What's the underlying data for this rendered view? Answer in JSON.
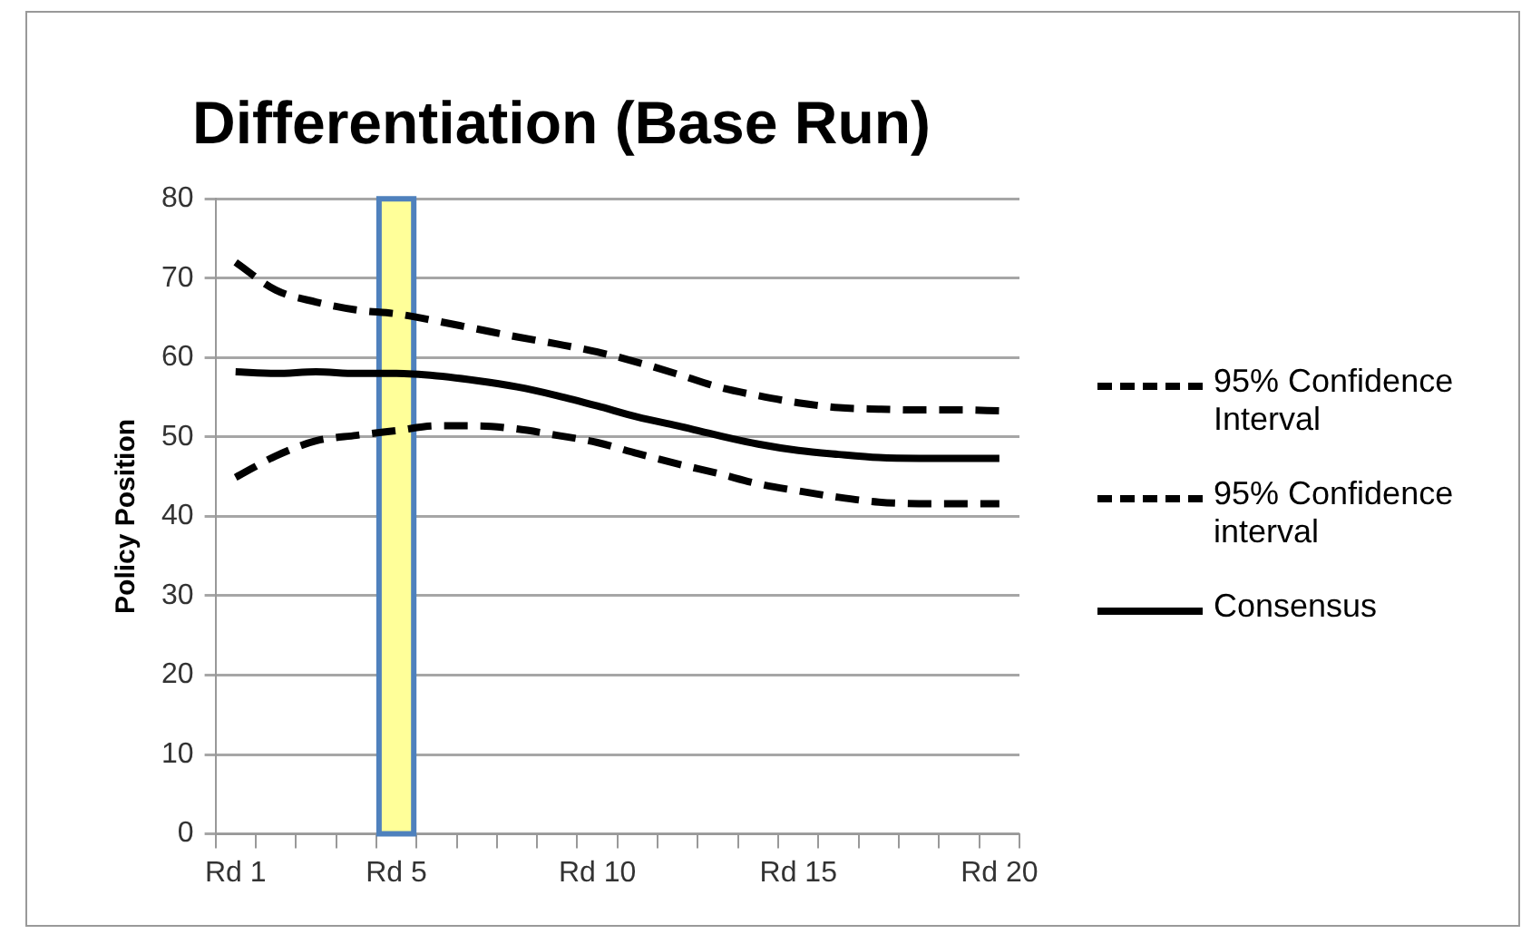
{
  "chart_data": {
    "type": "line",
    "title": "Differentiation (Base Run)",
    "ylabel": "Policy Position",
    "categories": [
      "Rd 1",
      null,
      null,
      null,
      "Rd 5",
      null,
      null,
      null,
      null,
      "Rd 10",
      null,
      null,
      null,
      null,
      "Rd 15",
      null,
      null,
      null,
      null,
      "Rd 20"
    ],
    "ylim": [
      0,
      80
    ],
    "yticks": [
      0,
      10,
      20,
      30,
      40,
      50,
      60,
      70,
      80
    ],
    "bands": [
      {
        "axis": "x",
        "from": "Rd 5",
        "to": "Rd 5",
        "color": "#ffff99"
      }
    ],
    "grid": "y",
    "legend": "right",
    "marker": "none",
    "series": [
      {
        "name": "95% Confidence Interval",
        "color": "#000000",
        "line_style": "dashed",
        "values": [
          72.0,
          68.5,
          67.0,
          66.0,
          65.5,
          64.6,
          63.6,
          62.6,
          61.7,
          60.7,
          59.4,
          57.9,
          56.3,
          55.2,
          54.3,
          53.7,
          53.5,
          53.4,
          53.4,
          53.3
        ]
      },
      {
        "name": "95% Confidence interval",
        "color": "#000000",
        "line_style": "dashed",
        "values": [
          44.9,
          47.6,
          49.5,
          50.2,
          50.8,
          51.4,
          51.4,
          51.0,
          50.2,
          49.3,
          47.9,
          46.6,
          45.4,
          44.1,
          43.2,
          42.4,
          41.8,
          41.6,
          41.6,
          41.6
        ]
      },
      {
        "name": "Consensus",
        "color": "#000000",
        "line_style": "solid",
        "values": [
          58.2,
          58.0,
          58.2,
          58.0,
          58.0,
          57.7,
          57.1,
          56.3,
          55.2,
          53.9,
          52.5,
          51.4,
          50.2,
          49.1,
          48.3,
          47.8,
          47.4,
          47.3,
          47.3,
          47.3
        ]
      }
    ]
  }
}
